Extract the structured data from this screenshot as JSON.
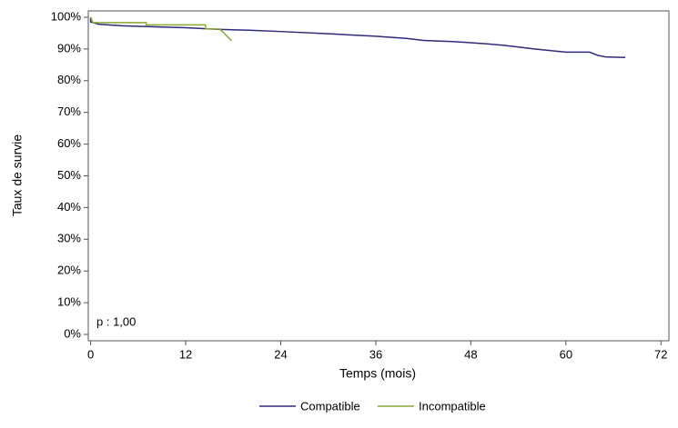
{
  "chart_data": {
    "type": "line",
    "xlabel": "Temps (mois)",
    "ylabel": "Taux de survie",
    "annotation": "p : 1,00",
    "xlim": [
      -0.3,
      73
    ],
    "xticks": [
      0,
      12,
      24,
      36,
      48,
      60,
      72
    ],
    "ylim": [
      -2,
      102
    ],
    "yticks": [
      {
        "value": 0,
        "label": "0%"
      },
      {
        "value": 10,
        "label": "10%"
      },
      {
        "value": 20,
        "label": "20%"
      },
      {
        "value": 30,
        "label": "30%"
      },
      {
        "value": 40,
        "label": "40%"
      },
      {
        "value": 50,
        "label": "50%"
      },
      {
        "value": 60,
        "label": "60%"
      },
      {
        "value": 70,
        "label": "70%"
      },
      {
        "value": 80,
        "label": "80%"
      },
      {
        "value": 90,
        "label": "90%"
      },
      {
        "value": 100,
        "label": "100%"
      }
    ],
    "series": [
      {
        "name": "Compatible",
        "color": "#2e2a7a",
        "x": [
          0,
          0,
          1,
          4,
          8,
          12,
          16,
          20,
          24,
          30,
          36,
          40,
          42,
          46,
          50,
          52,
          54,
          56,
          58,
          60,
          63,
          64,
          65,
          67.5
        ],
        "values": [
          100,
          98.5,
          97.8,
          97.3,
          97,
          96.7,
          96.2,
          95.9,
          95.5,
          94.8,
          94,
          93.3,
          92.7,
          92.3,
          91.6,
          91.2,
          90.6,
          90,
          89.5,
          89,
          89,
          88,
          87.5,
          87.3
        ]
      },
      {
        "name": "Incompatible",
        "color": "#8aa832",
        "x": [
          0,
          0.3,
          7,
          7,
          14.5,
          14.5,
          16.3,
          17.8
        ],
        "values": [
          100,
          98.3,
          98.3,
          97.6,
          97.6,
          96.3,
          96.3,
          92.6
        ]
      }
    ]
  }
}
